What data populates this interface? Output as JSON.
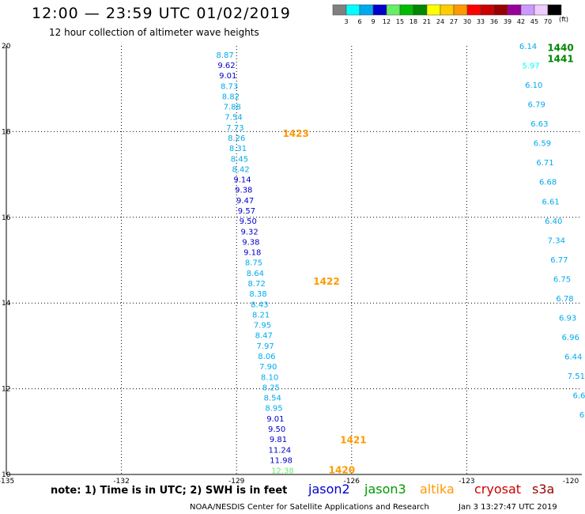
{
  "title": "12:00 — 23:59 UTC 01/02/2019",
  "subtitle": "12 hour collection of altimeter wave heights",
  "note": "note:  1) Time is in UTC;  2) SWH is in feet",
  "credit": "NOAA/NESDIS Center for Satellite Applications and Research",
  "timestamp": "Jan  3 13:27:47 UTC 2019",
  "satellites": [
    {
      "name": "jason2",
      "color": "#0000cc"
    },
    {
      "name": "jason3",
      "color": "#009900"
    },
    {
      "name": "altika",
      "color": "#ff9900"
    },
    {
      "name": "cryosat",
      "color": "#cc0000"
    },
    {
      "name": "s3a",
      "color": "#990000"
    }
  ],
  "legend": {
    "labels": [
      "3",
      "6",
      "9",
      "12",
      "15",
      "18",
      "21",
      "24",
      "27",
      "30",
      "33",
      "36",
      "39",
      "42",
      "45",
      "70"
    ],
    "unit": "(ft)",
    "colors": [
      "#808080",
      "#00ffff",
      "#00aaee",
      "#0000cc",
      "#66ee66",
      "#00bb00",
      "#008800",
      "#ffff00",
      "#ffcc00",
      "#ff9900",
      "#ff0000",
      "#cc0000",
      "#990000",
      "#990099",
      "#cc99ff",
      "#eeccff",
      "#000000"
    ]
  },
  "chart_data": {
    "type": "scatter",
    "xlabel": "",
    "ylabel": "",
    "xlim": [
      -135,
      -120
    ],
    "ylim": [
      10,
      20
    ],
    "x_ticks": [
      "-135",
      "-132",
      "-129",
      "-126",
      "-123",
      "-120"
    ],
    "y_ticks": [
      "10",
      "12",
      "14",
      "16",
      "18",
      "20"
    ],
    "grid": true,
    "track_a": {
      "start": [
        -129.3,
        19.8
      ],
      "end": [
        -127.8,
        10.1
      ],
      "values": [
        "8.87",
        "9.62",
        "9.01",
        "8.73",
        "8.82",
        "7.88",
        "7.54",
        "7.73",
        "8.26",
        "8.31",
        "8.45",
        "8.42",
        "9.14",
        "9.38",
        "9.47",
        "9.57",
        "9.50",
        "9.32",
        "9.38",
        "9.18",
        "8.75",
        "8.64",
        "8.72",
        "8.38",
        "8.43",
        "8.21",
        "7.95",
        "8.47",
        "7.97",
        "8.06",
        "7.90",
        "8.10",
        "8.25",
        "8.54",
        "8.95",
        "9.01",
        "9.50",
        "9.81",
        "11.24",
        "11.98",
        "12.38"
      ]
    },
    "track_b": {
      "start": [
        -121.4,
        20.0
      ],
      "end": [
        -120.0,
        11.4
      ],
      "values": [
        "6.14",
        "5.97",
        "6.10",
        "6.79",
        "6.63",
        "6.59",
        "6.71",
        "6.68",
        "6.61",
        "6.40",
        "7.34",
        "6.77",
        "6.75",
        "6.78",
        "6.93",
        "6.96",
        "6.44",
        "7.51",
        "6.6",
        "6"
      ]
    },
    "time_labels": [
      {
        "text": "1423",
        "x": -127.8,
        "y": 17.95,
        "color": "#ff9900"
      },
      {
        "text": "1422",
        "x": -127.0,
        "y": 14.5,
        "color": "#ff9900"
      },
      {
        "text": "1421",
        "x": -126.3,
        "y": 10.8,
        "color": "#ff9900"
      },
      {
        "text": "1420",
        "x": -126.6,
        "y": 10.1,
        "color": "#ff9900"
      },
      {
        "text": "1440",
        "x": -120.9,
        "y": 19.95,
        "color": "#008800"
      },
      {
        "text": "1441",
        "x": -120.9,
        "y": 19.7,
        "color": "#008800"
      }
    ]
  }
}
